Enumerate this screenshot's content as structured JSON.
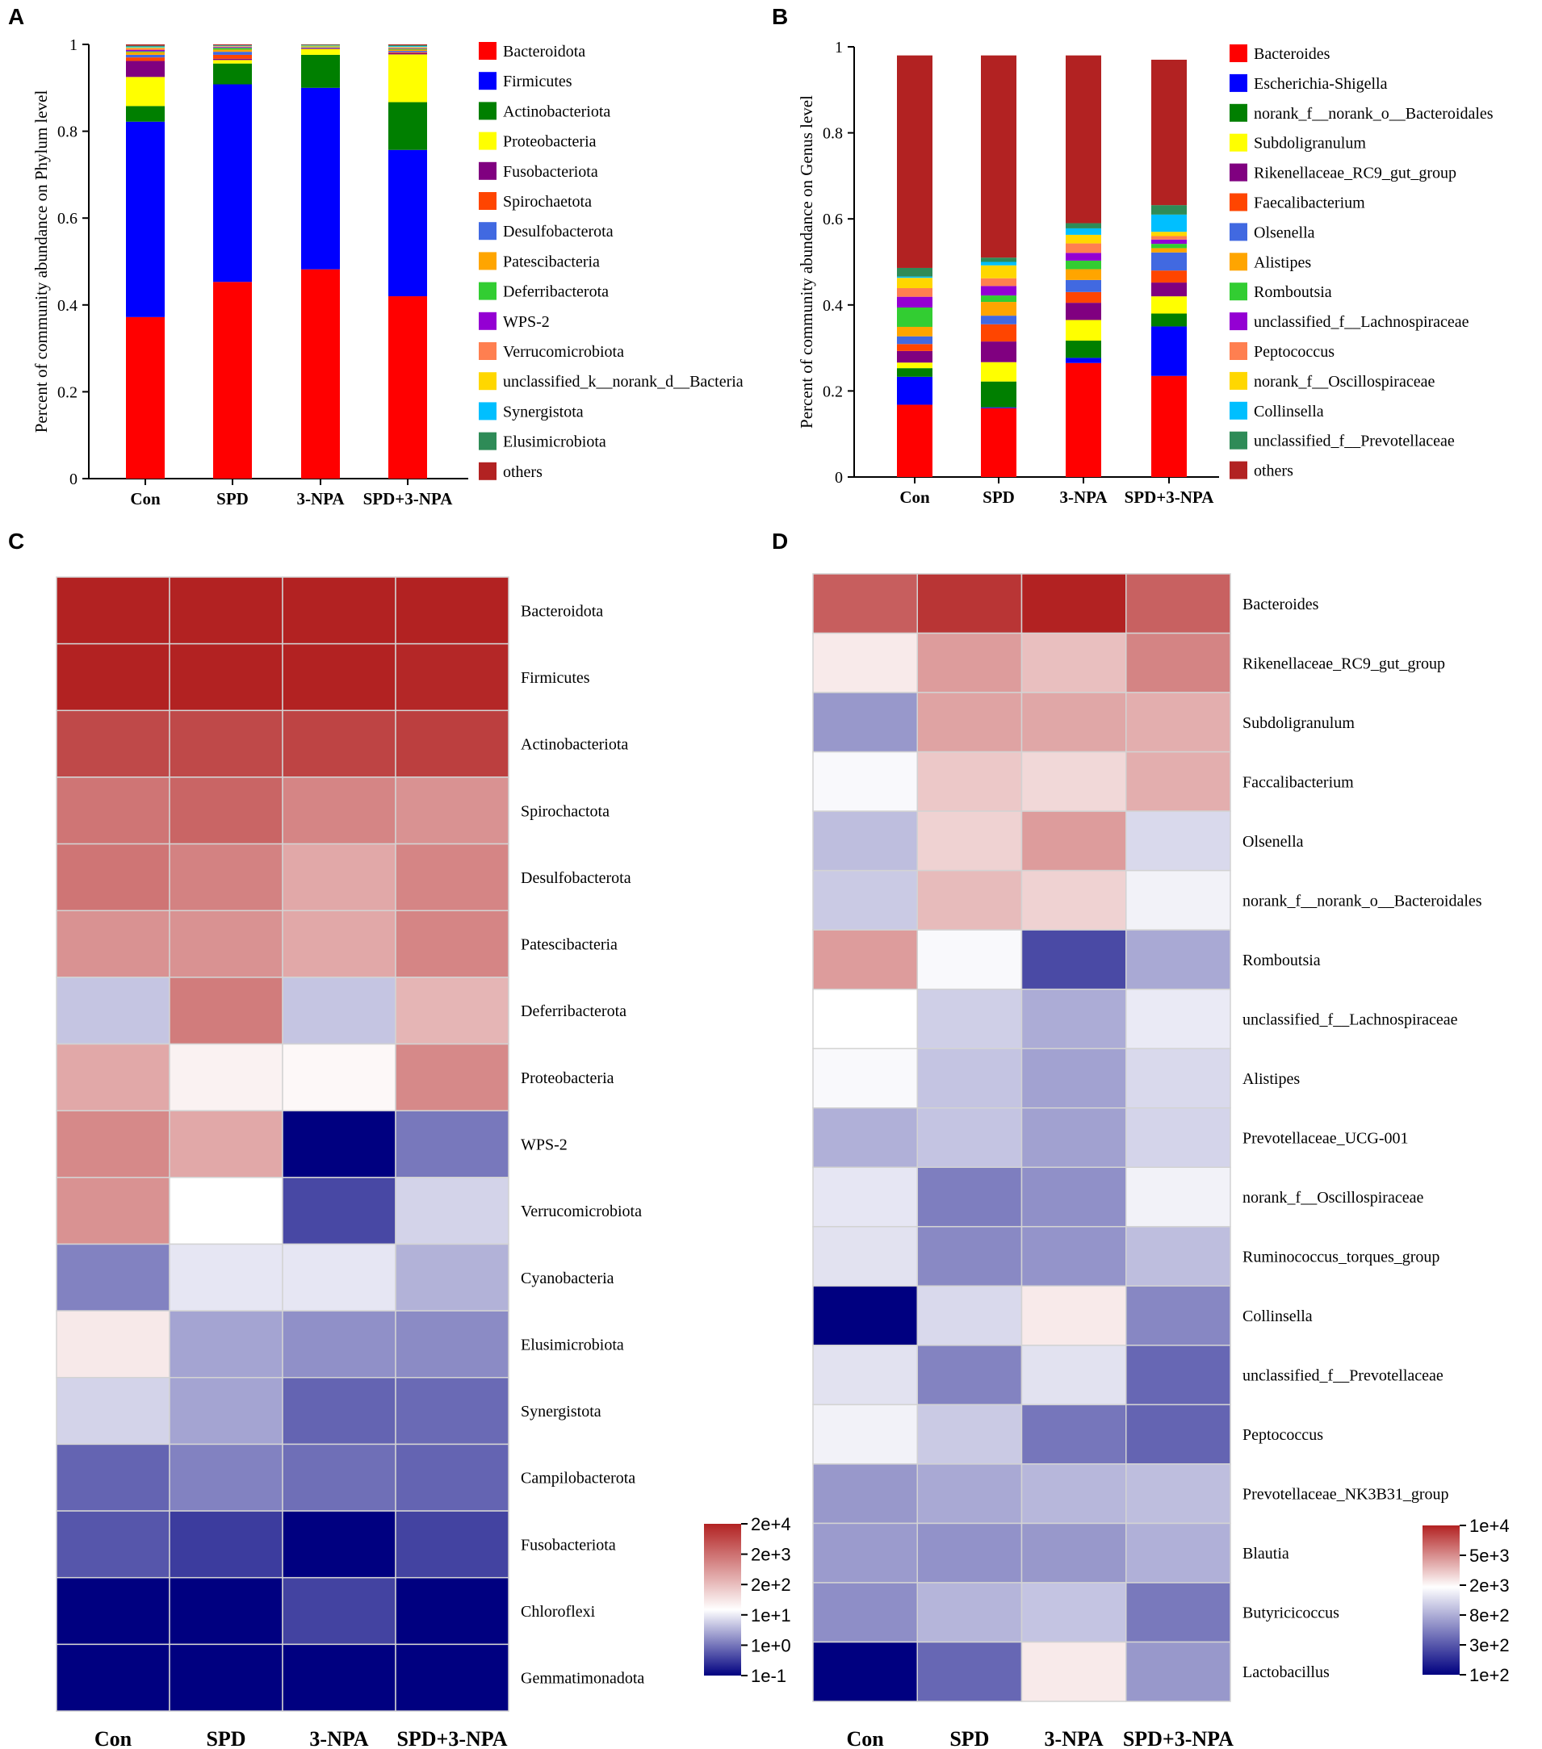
{
  "panel_labels": [
    "A",
    "B",
    "C",
    "D"
  ],
  "chart_data": [
    {
      "panel": "A",
      "type": "bar",
      "stacked": true,
      "ylabel": "Percent of community abundance on Phylum level",
      "ylim": [
        0,
        1
      ],
      "yticks": [
        "0",
        "0.2",
        "0.4",
        "0.6",
        "0.8",
        "1"
      ],
      "categories": [
        "Con",
        "SPD",
        "3-NPA",
        "SPD+3-NPA"
      ],
      "series": [
        {
          "name": "Bacteroidota",
          "color": "#ff0000",
          "values": [
            0.372,
            0.453,
            0.482,
            0.42
          ]
        },
        {
          "name": "Firmicutes",
          "color": "#0000ff",
          "values": [
            0.45,
            0.455,
            0.418,
            0.337
          ]
        },
        {
          "name": "Actinobacteriota",
          "color": "#007f00",
          "values": [
            0.036,
            0.048,
            0.076,
            0.11
          ]
        },
        {
          "name": "Proteobacteria",
          "color": "#ffff00",
          "values": [
            0.067,
            0.008,
            0.013,
            0.11
          ]
        },
        {
          "name": "Fusobacteriota",
          "color": "#800080",
          "values": [
            0.037,
            0.003,
            0.001,
            0.003
          ]
        },
        {
          "name": "Spirochaetota",
          "color": "#ff4500",
          "values": [
            0.008,
            0.009,
            0.001,
            0.002
          ]
        },
        {
          "name": "Desulfobacterota",
          "color": "#4169e1",
          "values": [
            0.006,
            0.007,
            0.002,
            0.003
          ]
        },
        {
          "name": "Patescibacteria",
          "color": "#ffa500",
          "values": [
            0.006,
            0.005,
            0.002,
            0.003
          ]
        },
        {
          "name": "Deferribacterota",
          "color": "#32cd32",
          "values": [
            0.002,
            0.004,
            0.001,
            0.002
          ]
        },
        {
          "name": "WPS-2",
          "color": "#9400d3",
          "values": [
            0.003,
            0.002,
            0.0,
            0.001
          ]
        },
        {
          "name": "Verrucomicrobiota",
          "color": "#ff7f50",
          "values": [
            0.004,
            0.001,
            0.0,
            0.002
          ]
        },
        {
          "name": "unclassified_k__norank_d__Bacteria",
          "color": "#ffd700",
          "values": [
            0.002,
            0.001,
            0.001,
            0.001
          ]
        },
        {
          "name": "Synergistota",
          "color": "#00bfff",
          "values": [
            0.002,
            0.001,
            0.001,
            0.002
          ]
        },
        {
          "name": "Elusimicrobiota",
          "color": "#2e8b57",
          "values": [
            0.002,
            0.001,
            0.001,
            0.002
          ]
        },
        {
          "name": "others",
          "color": "#b22222",
          "values": [
            0.003,
            0.002,
            0.001,
            0.002
          ]
        }
      ]
    },
    {
      "panel": "B",
      "type": "bar",
      "stacked": true,
      "ylabel": "Percent of community abundance on Genus level",
      "ylim": [
        0,
        1
      ],
      "yticks": [
        "0",
        "0.2",
        "0.4",
        "0.6",
        "0.8",
        "1"
      ],
      "categories": [
        "Con",
        "SPD",
        "3-NPA",
        "SPD+3-NPA"
      ],
      "series": [
        {
          "name": "Bacteroides",
          "color": "#ff0000",
          "values": [
            0.168,
            0.16,
            0.265,
            0.235
          ]
        },
        {
          "name": "Escherichia-Shigella",
          "color": "#0000ff",
          "values": [
            0.065,
            0.002,
            0.012,
            0.115
          ]
        },
        {
          "name": "norank_f__norank_o__Bacteroidales",
          "color": "#007f00",
          "values": [
            0.02,
            0.06,
            0.04,
            0.03
          ]
        },
        {
          "name": "Subdoligranulum",
          "color": "#ffff00",
          "values": [
            0.013,
            0.045,
            0.048,
            0.04
          ]
        },
        {
          "name": "Rikenellaceae_RC9_gut_group",
          "color": "#800080",
          "values": [
            0.027,
            0.048,
            0.04,
            0.032
          ]
        },
        {
          "name": "Faecalibacterium",
          "color": "#ff4500",
          "values": [
            0.016,
            0.04,
            0.025,
            0.028
          ]
        },
        {
          "name": "Olsenella",
          "color": "#4169e1",
          "values": [
            0.018,
            0.02,
            0.028,
            0.042
          ]
        },
        {
          "name": "Alistipes",
          "color": "#ffa500",
          "values": [
            0.022,
            0.032,
            0.025,
            0.01
          ]
        },
        {
          "name": "Romboutsia",
          "color": "#32cd32",
          "values": [
            0.045,
            0.015,
            0.02,
            0.01
          ]
        },
        {
          "name": "unclassified_f__Lachnospiraceae",
          "color": "#9400d3",
          "values": [
            0.025,
            0.022,
            0.018,
            0.01
          ]
        },
        {
          "name": "Peptococcus",
          "color": "#ff7f50",
          "values": [
            0.02,
            0.018,
            0.022,
            0.008
          ]
        },
        {
          "name": "norank_f__Oscillospiraceae",
          "color": "#ffd700",
          "values": [
            0.024,
            0.03,
            0.02,
            0.01
          ]
        },
        {
          "name": "Collinsella",
          "color": "#00bfff",
          "values": [
            0.003,
            0.008,
            0.015,
            0.04
          ]
        },
        {
          "name": "unclassified_f__Prevotellaceae",
          "color": "#2e8b57",
          "values": [
            0.02,
            0.01,
            0.012,
            0.022
          ]
        },
        {
          "name": "others",
          "color": "#b22222",
          "values": [
            0.494,
            0.47,
            0.39,
            0.338
          ]
        }
      ]
    },
    {
      "panel": "C",
      "type": "heatmap",
      "columns": [
        "Con",
        "SPD",
        "3-NPA",
        "SPD+3-NPA"
      ],
      "rows": [
        {
          "label": "Bacteroidota",
          "values": [
            20000,
            20000,
            20000,
            20000
          ]
        },
        {
          "label": "Firmicutes",
          "values": [
            20000,
            20000,
            20000,
            17000
          ]
        },
        {
          "label": "Actinobacteriota",
          "values": [
            6000,
            6000,
            7000,
            8000
          ]
        },
        {
          "label": "Spirochactota",
          "values": [
            1500,
            2500,
            900,
            600
          ]
        },
        {
          "label": "Desulfobacterota",
          "values": [
            1500,
            1000,
            300,
            900
          ]
        },
        {
          "label": "Patescibacteria",
          "values": [
            600,
            600,
            300,
            900
          ]
        },
        {
          "label": "Deferribacterota",
          "values": [
            6,
            1200,
            6,
            200
          ]
        },
        {
          "label": "Proteobacteria",
          "values": [
            300,
            30,
            25,
            800
          ]
        },
        {
          "label": "WPS-2",
          "values": [
            800,
            300,
            0.1,
            1.2
          ]
        },
        {
          "label": "Verrucomicrobiota",
          "values": [
            600,
            20,
            0.45,
            8
          ]
        },
        {
          "label": "Cyanobacteria",
          "values": [
            1.5,
            12,
            12,
            4
          ]
        },
        {
          "label": "Elusimicrobiota",
          "values": [
            40,
            3,
            2,
            1.8
          ]
        },
        {
          "label": "Synergistota",
          "values": [
            8,
            3,
            0.8,
            0.9
          ]
        },
        {
          "label": "Campilobacterota",
          "values": [
            0.8,
            1.5,
            1,
            0.8
          ]
        },
        {
          "label": "Fusobacteriota",
          "values": [
            0.6,
            0.35,
            0.1,
            0.4
          ]
        },
        {
          "label": "Chloroflexi",
          "values": [
            0.1,
            0.1,
            0.4,
            0.1
          ]
        },
        {
          "label": "Gemmatimonadota",
          "values": [
            0.1,
            0.1,
            0.1,
            0.1
          ]
        }
      ],
      "colorbar": {
        "ticks": [
          "2e+4",
          "2e+3",
          "2e+2",
          "1e+1",
          "1e+0",
          "1e-1"
        ],
        "min": 0.1,
        "max": 20000,
        "mid": 20,
        "low_color": "#000080",
        "mid_color": "#ffffff",
        "high_color": "#b22222"
      }
    },
    {
      "panel": "D",
      "type": "heatmap",
      "columns": [
        "Con",
        "SPD",
        "3-NPA",
        "SPD+3-NPA"
      ],
      "rows": [
        {
          "label": "Bacteroides",
          "values": [
            6000,
            8500,
            10000,
            5800
          ]
        },
        {
          "label": "Rikenellaceae_RC9_gut_group",
          "values": [
            1800,
            3500,
            2600,
            4300
          ]
        },
        {
          "label": "Subdoligranulum",
          "values": [
            500,
            3300,
            3200,
            3000
          ]
        },
        {
          "label": "Faccalibacterium",
          "values": [
            1400,
            2400,
            2100,
            3000
          ]
        },
        {
          "label": "Olsenella",
          "values": [
            750,
            2200,
            3500,
            1000
          ]
        },
        {
          "label": "norank_f__norank_o__Bacteroidales",
          "values": [
            850,
            2700,
            2200,
            1300
          ]
        },
        {
          "label": "Romboutsia",
          "values": [
            3500,
            1400,
            220,
            600
          ]
        },
        {
          "label": "unclassified_f__Lachnospiraceae",
          "values": [
            1500,
            900,
            620,
            1200
          ]
        },
        {
          "label": "Alistipes",
          "values": [
            1400,
            800,
            560,
            1000
          ]
        },
        {
          "label": "Prevotellaceae_UCG-001",
          "values": [
            650,
            800,
            550,
            950
          ]
        },
        {
          "label": "norank_f__Oscillospiraceae",
          "values": [
            1150,
            380,
            460,
            1300
          ]
        },
        {
          "label": "Ruminococcus_torques_group",
          "values": [
            1100,
            430,
            480,
            750
          ]
        },
        {
          "label": "Collinsella",
          "values": [
            100,
            1000,
            1800,
            420
          ]
        },
        {
          "label": "unclassified_f__Prevotellaceae",
          "values": [
            1100,
            400,
            1100,
            300
          ]
        },
        {
          "label": "Peptococcus",
          "values": [
            1300,
            850,
            350,
            290
          ]
        },
        {
          "label": "Prevotellaceae_NK3B31_group",
          "values": [
            500,
            600,
            700,
            750
          ]
        },
        {
          "label": "Blautia",
          "values": [
            520,
            470,
            500,
            650
          ]
        },
        {
          "label": "Butyricicoccus",
          "values": [
            450,
            680,
            800,
            360
          ]
        },
        {
          "label": "Lactobacillus",
          "values": [
            100,
            300,
            1800,
            500
          ]
        }
      ],
      "colorbar": {
        "ticks": [
          "1e+4",
          "5e+3",
          "2e+3",
          "8e+2",
          "3e+2",
          "1e+2"
        ],
        "min": 100,
        "max": 10000,
        "mid": 1500,
        "low_color": "#000080",
        "mid_color": "#ffffff",
        "high_color": "#b22222"
      }
    }
  ]
}
